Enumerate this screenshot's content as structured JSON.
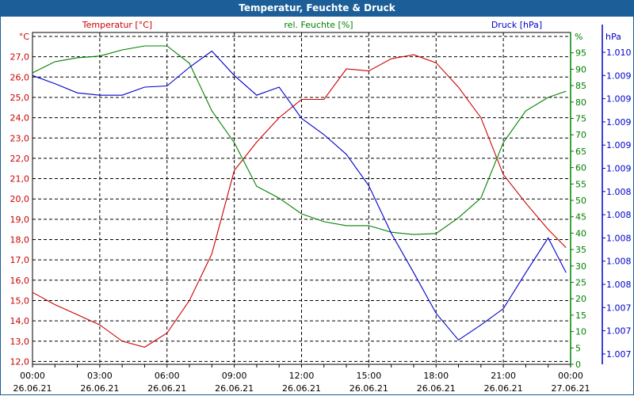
{
  "window": {
    "title": "Temperatur, Feuchte & Druck"
  },
  "colors": {
    "temperature": "#cc0000",
    "humidity": "#008000",
    "pressure": "#0000cc",
    "titlebar": "#1c5f98"
  },
  "chart_data": {
    "type": "line",
    "title": "Temperatur, Feuchte & Druck",
    "x_hours": [
      0,
      1,
      2,
      3,
      4,
      5,
      6,
      7,
      8,
      9,
      10,
      11,
      12,
      13,
      14,
      15,
      16,
      17,
      18,
      19,
      20,
      21,
      22,
      23,
      23.8
    ],
    "x_ticks": [
      {
        "time": "00:00",
        "date": "26.06.21"
      },
      {
        "time": "03:00",
        "date": "26.06.21"
      },
      {
        "time": "06:00",
        "date": "26.06.21"
      },
      {
        "time": "09:00",
        "date": "26.06.21"
      },
      {
        "time": "12:00",
        "date": "26.06.21"
      },
      {
        "time": "15:00",
        "date": "26.06.21"
      },
      {
        "time": "18:00",
        "date": "26.06.21"
      },
      {
        "time": "21:00",
        "date": "26.06.21"
      },
      {
        "time": "00:00",
        "date": "27.06.21"
      }
    ],
    "series": [
      {
        "name": "Temperatur [°C]",
        "axis": "left",
        "unit": "°C",
        "values": [
          15.4,
          14.8,
          14.3,
          13.8,
          13.0,
          12.7,
          13.4,
          15.0,
          17.3,
          21.4,
          22.8,
          24.0,
          24.9,
          24.9,
          26.4,
          26.3,
          26.9,
          27.1,
          26.7,
          25.5,
          24.0,
          21.2,
          19.8,
          18.5,
          17.6
        ]
      },
      {
        "name": "rel. Feuchte [%]",
        "axis": "right",
        "unit": "%",
        "values": [
          88.9,
          92.3,
          93.5,
          94.0,
          95.9,
          97.1,
          97.1,
          91.8,
          77.3,
          67.6,
          54.3,
          50.7,
          45.9,
          43.5,
          42.3,
          42.3,
          40.3,
          39.6,
          39.9,
          44.7,
          50.7,
          67.6,
          77.3,
          81.4,
          83.3
        ]
      },
      {
        "name": "Druck [hPa]",
        "axis": "right2",
        "unit": "hPa",
        "values": [
          1009.4,
          1009.33,
          1009.25,
          1009.23,
          1009.23,
          1009.3,
          1009.31,
          1009.47,
          1009.61,
          1009.4,
          1009.23,
          1009.3,
          1009.03,
          1008.89,
          1008.72,
          1008.45,
          1008.04,
          1007.7,
          1007.35,
          1007.12,
          1007.25,
          1007.39,
          1007.7,
          1008.0,
          1007.7
        ]
      }
    ],
    "axes": {
      "left": {
        "unit_label": "°C",
        "ylim": [
          11.85,
          28
        ],
        "ticks": [
          "27,0",
          "26,0",
          "25,0",
          "24,0",
          "23,0",
          "22,0",
          "21,0",
          "20,0",
          "19,0",
          "18,0",
          "17,0",
          "16,0",
          "15,0",
          "14,0",
          "13,0",
          "12,0"
        ],
        "tick_values": [
          27,
          26,
          25,
          24,
          23,
          22,
          21,
          20,
          19,
          18,
          17,
          16,
          15,
          14,
          13,
          12
        ]
      },
      "right": {
        "unit_label": "%",
        "ylim": [
          0,
          100
        ],
        "ticks": [
          "95",
          "90",
          "85",
          "80",
          "75",
          "70",
          "65",
          "60",
          "55",
          "50",
          "45",
          "40",
          "35",
          "30",
          "25",
          "20",
          "15",
          "10",
          "5",
          "0"
        ],
        "tick_values": [
          95,
          90,
          85,
          80,
          75,
          70,
          65,
          60,
          55,
          50,
          45,
          40,
          35,
          30,
          25,
          20,
          15,
          10,
          5,
          0
        ]
      },
      "right2": {
        "unit_label": "hPa",
        "ticks": [
          "1.010",
          "1.009",
          "1.009",
          "1.009",
          "1.009",
          "1.009",
          "1.008",
          "1.008",
          "1.008",
          "1.008",
          "1.008",
          "1.007",
          "1.007",
          "1.007"
        ],
        "tick_values": [
          1009.6,
          1009.4,
          1009.2,
          1009.0,
          1008.8,
          1008.6,
          1008.4,
          1008.2,
          1008.0,
          1007.8,
          1007.6,
          1007.4,
          1007.2,
          1007.0
        ]
      }
    },
    "legend": {
      "placement": "top",
      "entries": [
        "Temperatur [°C]",
        "rel. Feuchte [%]",
        "Druck [hPa]"
      ]
    },
    "grid": true
  }
}
